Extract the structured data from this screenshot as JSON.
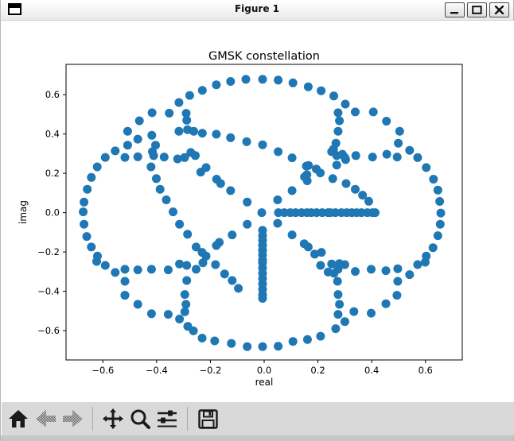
{
  "window": {
    "title": "Figure 1",
    "controls": [
      "minimize",
      "maximize",
      "close"
    ]
  },
  "toolbar": {
    "buttons": [
      {
        "name": "home",
        "enabled": true
      },
      {
        "name": "back",
        "enabled": false
      },
      {
        "name": "forward",
        "enabled": false
      },
      {
        "name": "pan",
        "enabled": true
      },
      {
        "name": "zoom",
        "enabled": true
      },
      {
        "name": "configure-subplots",
        "enabled": true
      },
      {
        "name": "save",
        "enabled": true
      }
    ]
  },
  "chart_data": {
    "type": "scatter",
    "title": "GMSK constellation",
    "xlabel": "real",
    "ylabel": "imag",
    "xlim": [
      -0.737,
      0.737
    ],
    "ylim": [
      -0.749,
      0.754
    ],
    "xticks": [
      -0.6,
      -0.4,
      -0.2,
      0.0,
      0.2,
      0.4,
      0.6
    ],
    "yticks": [
      -0.6,
      -0.4,
      -0.2,
      0.0,
      0.2,
      0.4,
      0.6
    ],
    "grid": false,
    "legend": "none",
    "marker_color": "#1f77b4",
    "marker_radius_px": 5.5,
    "points": [
      [
        -0.23,
        0.622
      ],
      [
        -0.178,
        0.65
      ],
      [
        -0.125,
        0.667
      ],
      [
        -0.068,
        0.678
      ],
      [
        -0.006,
        0.678
      ],
      [
        0.052,
        0.674
      ],
      [
        0.107,
        0.66
      ],
      [
        0.164,
        0.64
      ],
      [
        0.212,
        0.62
      ],
      [
        0.259,
        0.593
      ],
      [
        0.302,
        0.552
      ],
      [
        0.339,
        0.512
      ],
      [
        0.406,
        0.512
      ],
      [
        0.455,
        0.465
      ],
      [
        0.504,
        0.414
      ],
      [
        0.499,
        0.353
      ],
      [
        0.541,
        0.317
      ],
      [
        0.571,
        0.28
      ],
      [
        0.603,
        0.229
      ],
      [
        0.63,
        0.17
      ],
      [
        0.646,
        0.115
      ],
      [
        0.653,
        0.057
      ],
      [
        0.657,
        -0.002
      ],
      [
        0.655,
        -0.059
      ],
      [
        0.646,
        -0.117
      ],
      [
        0.628,
        -0.178
      ],
      [
        0.603,
        -0.221
      ],
      [
        0.599,
        -0.252
      ],
      [
        0.571,
        -0.264
      ],
      [
        0.541,
        -0.315
      ],
      [
        0.497,
        -0.285
      ],
      [
        0.453,
        -0.295
      ],
      [
        0.398,
        -0.288
      ],
      [
        0.339,
        -0.299
      ],
      [
        0.3,
        -0.264
      ],
      [
        0.28,
        -0.259
      ],
      [
        0.251,
        -0.261
      ],
      [
        0.266,
        -0.59
      ],
      [
        0.21,
        -0.628
      ],
      [
        0.161,
        -0.645
      ],
      [
        0.107,
        -0.655
      ],
      [
        0.052,
        -0.679
      ],
      [
        -0.006,
        -0.681
      ],
      [
        -0.063,
        -0.681
      ],
      [
        -0.122,
        -0.665
      ],
      [
        -0.184,
        -0.652
      ],
      [
        -0.231,
        -0.638
      ],
      [
        -0.263,
        -0.601
      ],
      [
        -0.284,
        -0.578
      ],
      [
        -0.315,
        -0.541
      ],
      [
        -0.357,
        -0.517
      ],
      [
        -0.419,
        -0.514
      ],
      [
        -0.47,
        -0.466
      ],
      [
        -0.518,
        -0.42
      ],
      [
        -0.554,
        -0.304
      ],
      [
        -0.591,
        -0.268
      ],
      [
        -0.623,
        -0.248
      ],
      [
        -0.62,
        -0.221
      ],
      [
        -0.643,
        -0.175
      ],
      [
        -0.66,
        -0.121
      ],
      [
        -0.67,
        -0.059
      ],
      [
        -0.673,
        0.004
      ],
      [
        -0.67,
        0.054
      ],
      [
        -0.658,
        0.119
      ],
      [
        -0.643,
        0.179
      ],
      [
        -0.621,
        0.233
      ],
      [
        -0.591,
        0.281
      ],
      [
        -0.554,
        0.314
      ],
      [
        -0.508,
        0.343
      ],
      [
        -0.508,
        0.414
      ],
      [
        -0.464,
        0.467
      ],
      [
        -0.417,
        0.508
      ],
      [
        -0.353,
        0.506
      ],
      [
        -0.29,
        0.505
      ],
      [
        -0.277,
        0.596
      ],
      [
        -0.317,
        0.56
      ],
      [
        -0.47,
        0.374
      ],
      [
        -0.418,
        0.393
      ],
      [
        -0.317,
        0.414
      ],
      [
        -0.285,
        0.422
      ],
      [
        -0.262,
        0.414
      ],
      [
        -0.288,
        0.47
      ],
      [
        -0.404,
        0.343
      ],
      [
        -0.416,
        0.31
      ],
      [
        -0.518,
        0.281
      ],
      [
        -0.47,
        0.284
      ],
      [
        -0.411,
        0.29
      ],
      [
        -0.372,
        0.283
      ],
      [
        -0.322,
        0.273
      ],
      [
        -0.296,
        0.28
      ],
      [
        -0.273,
        0.306
      ],
      [
        -0.256,
        0.29
      ],
      [
        -0.23,
        0.404
      ],
      [
        -0.178,
        0.399
      ],
      [
        -0.125,
        0.381
      ],
      [
        -0.065,
        0.361
      ],
      [
        -0.006,
        0.345
      ],
      [
        0.052,
        0.31
      ],
      [
        0.104,
        0.279
      ],
      [
        0.165,
        0.24
      ],
      [
        0.194,
        0.222
      ],
      [
        0.209,
        0.202
      ],
      [
        0.275,
        0.508
      ],
      [
        0.28,
        0.467
      ],
      [
        0.275,
        0.414
      ],
      [
        0.267,
        0.353
      ],
      [
        0.258,
        0.323
      ],
      [
        0.251,
        0.31
      ],
      [
        0.27,
        0.29
      ],
      [
        0.3,
        0.28
      ],
      [
        0.341,
        0.29
      ],
      [
        0.403,
        0.283
      ],
      [
        0.456,
        0.297
      ],
      [
        0.495,
        0.283
      ],
      [
        0.291,
        0.297
      ],
      [
        0.303,
        0.27
      ],
      [
        -0.421,
        0.233
      ],
      [
        -0.401,
        0.173
      ],
      [
        -0.387,
        0.119
      ],
      [
        -0.364,
        0.065
      ],
      [
        -0.339,
        0.004
      ],
      [
        -0.315,
        -0.059
      ],
      [
        -0.285,
        -0.11
      ],
      [
        -0.253,
        -0.175
      ],
      [
        -0.236,
        0.206
      ],
      [
        -0.216,
        0.229
      ],
      [
        -0.177,
        0.17
      ],
      [
        -0.162,
        0.148
      ],
      [
        -0.125,
        0.112
      ],
      [
        -0.063,
        0.054
      ],
      [
        -0.009,
        0.0
      ],
      [
        -0.063,
        -0.059
      ],
      [
        -0.119,
        -0.113
      ],
      [
        -0.167,
        -0.151
      ],
      [
        -0.178,
        -0.167
      ],
      [
        -0.231,
        -0.202
      ],
      [
        -0.216,
        -0.221
      ],
      [
        -0.228,
        -0.255
      ],
      [
        -0.181,
        -0.264
      ],
      [
        -0.147,
        -0.312
      ],
      [
        -0.119,
        -0.345
      ],
      [
        -0.096,
        -0.385
      ],
      [
        0.157,
        0.237
      ],
      [
        0.159,
        0.193
      ],
      [
        0.15,
        0.182
      ],
      [
        0.16,
        0.162
      ],
      [
        0.104,
        0.112
      ],
      [
        0.05,
        0.065
      ],
      [
        0.05,
        -0.054
      ],
      [
        0.104,
        -0.113
      ],
      [
        0.149,
        -0.158
      ],
      [
        0.164,
        -0.175
      ],
      [
        0.188,
        -0.211
      ],
      [
        0.213,
        -0.202
      ],
      [
        0.21,
        -0.268
      ],
      [
        0.238,
        -0.302
      ],
      [
        0.053,
        0.0
      ],
      [
        0.075,
        0.0
      ],
      [
        0.097,
        0.0
      ],
      [
        0.117,
        0.0
      ],
      [
        0.139,
        0.0
      ],
      [
        0.159,
        0.0
      ],
      [
        0.175,
        0.0
      ],
      [
        0.195,
        0.0
      ],
      [
        0.216,
        0.0
      ],
      [
        0.238,
        0.0
      ],
      [
        0.246,
        0.0
      ],
      [
        0.265,
        0.0
      ],
      [
        0.287,
        0.0
      ],
      [
        0.307,
        0.0
      ],
      [
        0.326,
        0.0
      ],
      [
        0.344,
        0.0
      ],
      [
        0.362,
        0.0
      ],
      [
        0.384,
        0.0
      ],
      [
        0.403,
        0.0
      ],
      [
        0.413,
        0.0
      ],
      [
        -0.006,
        -0.09
      ],
      [
        -0.006,
        -0.117
      ],
      [
        -0.006,
        -0.141
      ],
      [
        -0.006,
        -0.166
      ],
      [
        -0.006,
        -0.191
      ],
      [
        -0.006,
        -0.215
      ],
      [
        -0.006,
        -0.24
      ],
      [
        -0.006,
        -0.255
      ],
      [
        -0.006,
        -0.281
      ],
      [
        -0.006,
        -0.308
      ],
      [
        -0.006,
        -0.335
      ],
      [
        -0.006,
        -0.362
      ],
      [
        -0.006,
        -0.389
      ],
      [
        -0.006,
        -0.416
      ],
      [
        -0.006,
        -0.436
      ],
      [
        0.27,
        0.242
      ],
      [
        0.255,
        0.173
      ],
      [
        0.305,
        0.148
      ],
      [
        0.339,
        0.119
      ],
      [
        0.366,
        0.089
      ],
      [
        0.389,
        0.058
      ],
      [
        -0.518,
        -0.288
      ],
      [
        -0.47,
        -0.291
      ],
      [
        -0.419,
        -0.288
      ],
      [
        -0.357,
        -0.291
      ],
      [
        -0.315,
        -0.261
      ],
      [
        -0.288,
        -0.268
      ],
      [
        -0.253,
        -0.288
      ],
      [
        -0.518,
        -0.349
      ],
      [
        -0.518,
        -0.42
      ],
      [
        -0.288,
        -0.345
      ],
      [
        -0.295,
        -0.416
      ],
      [
        -0.291,
        -0.466
      ],
      [
        -0.295,
        -0.504
      ],
      [
        0.275,
        -0.288
      ],
      [
        0.26,
        -0.308
      ],
      [
        0.497,
        -0.349
      ],
      [
        0.494,
        -0.42
      ],
      [
        0.453,
        -0.463
      ],
      [
        0.398,
        -0.511
      ],
      [
        0.334,
        -0.503
      ],
      [
        0.273,
        -0.349
      ],
      [
        0.275,
        -0.416
      ],
      [
        0.28,
        -0.466
      ],
      [
        0.275,
        -0.517
      ],
      [
        0.3,
        -0.554
      ]
    ]
  }
}
